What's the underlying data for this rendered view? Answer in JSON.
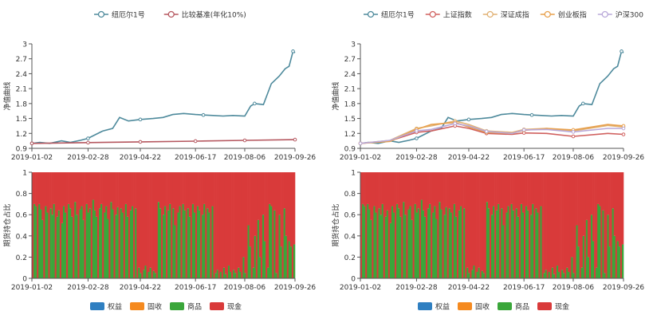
{
  "colors": {
    "fund": "#4e8a9c",
    "benchmark": "#b5575f",
    "sh": "#d0605e",
    "sz": "#e0b072",
    "cy": "#e8a04c",
    "hs300": "#b9a8d9",
    "equity": "#2f7fc1",
    "bond": "#f58a1f",
    "commodity": "#3aa63a",
    "cash": "#d93a3a"
  },
  "chart_data": [
    {
      "type": "line",
      "panel": "top-left",
      "ylabel": "净值曲线",
      "ylim": [
        0.9,
        3
      ],
      "y_ticks": [
        "3",
        "2.7",
        "2.4",
        "2.1",
        "1.8",
        "1.5",
        "1.2",
        "0.9"
      ],
      "x_ticks": [
        "2019-01-02",
        "2019-02-28",
        "2019-04-22",
        "2019-06-17",
        "2019-08-06",
        "2019-09-26"
      ],
      "legend_position": "top",
      "series": [
        {
          "name": "纽厄尔1号",
          "color_key": "fund",
          "x": [
            "2019-01-02",
            "2019-01-10",
            "2019-01-20",
            "2019-02-01",
            "2019-02-10",
            "2019-02-20",
            "2019-02-28",
            "2019-03-08",
            "2019-03-15",
            "2019-03-25",
            "2019-04-01",
            "2019-04-10",
            "2019-04-22",
            "2019-05-05",
            "2019-05-15",
            "2019-05-25",
            "2019-06-05",
            "2019-06-17",
            "2019-06-25",
            "2019-07-05",
            "2019-07-15",
            "2019-07-25",
            "2019-08-06",
            "2019-08-12",
            "2019-08-16",
            "2019-08-25",
            "2019-09-02",
            "2019-09-10",
            "2019-09-16",
            "2019-09-20",
            "2019-09-24",
            "2019-09-26"
          ],
          "y": [
            1.0,
            1.02,
            1.0,
            1.05,
            1.02,
            1.06,
            1.1,
            1.18,
            1.25,
            1.3,
            1.52,
            1.45,
            1.48,
            1.5,
            1.52,
            1.58,
            1.6,
            1.58,
            1.57,
            1.56,
            1.55,
            1.56,
            1.55,
            1.75,
            1.8,
            1.78,
            2.2,
            2.35,
            2.5,
            2.55,
            2.85,
            2.82
          ]
        },
        {
          "name": "比较基准(年化10%)",
          "color_key": "benchmark",
          "x": [
            "2019-01-02",
            "2019-02-28",
            "2019-04-22",
            "2019-06-17",
            "2019-08-06",
            "2019-09-26"
          ],
          "y": [
            1.0,
            1.015,
            1.03,
            1.045,
            1.06,
            1.075
          ]
        }
      ]
    },
    {
      "type": "line",
      "panel": "top-right",
      "ylabel": "净值曲线",
      "ylim": [
        0.9,
        3
      ],
      "y_ticks": [
        "3",
        "2.7",
        "2.4",
        "2.1",
        "1.8",
        "1.5",
        "1.2",
        "0.9"
      ],
      "x_ticks": [
        "2019-01-02",
        "2019-02-28",
        "2019-04-22",
        "2019-06-17",
        "2019-08-06",
        "2019-09-26"
      ],
      "legend_position": "top",
      "series": [
        {
          "name": "纽厄尔1号",
          "color_key": "fund",
          "x": [
            "2019-01-02",
            "2019-01-10",
            "2019-01-20",
            "2019-02-01",
            "2019-02-10",
            "2019-02-20",
            "2019-02-28",
            "2019-03-08",
            "2019-03-15",
            "2019-03-25",
            "2019-04-01",
            "2019-04-10",
            "2019-04-22",
            "2019-05-05",
            "2019-05-15",
            "2019-05-25",
            "2019-06-05",
            "2019-06-17",
            "2019-06-25",
            "2019-07-05",
            "2019-07-15",
            "2019-07-25",
            "2019-08-06",
            "2019-08-12",
            "2019-08-16",
            "2019-08-25",
            "2019-09-02",
            "2019-09-10",
            "2019-09-16",
            "2019-09-20",
            "2019-09-24",
            "2019-09-26"
          ],
          "y": [
            1.0,
            1.02,
            1.0,
            1.05,
            1.02,
            1.06,
            1.1,
            1.18,
            1.25,
            1.3,
            1.52,
            1.45,
            1.48,
            1.5,
            1.52,
            1.58,
            1.6,
            1.58,
            1.57,
            1.56,
            1.55,
            1.56,
            1.55,
            1.75,
            1.8,
            1.78,
            2.2,
            2.35,
            2.5,
            2.55,
            2.85,
            2.82
          ]
        },
        {
          "name": "上证指数",
          "color_key": "sh",
          "x": [
            "2019-01-02",
            "2019-02-01",
            "2019-02-28",
            "2019-03-15",
            "2019-04-08",
            "2019-04-22",
            "2019-05-10",
            "2019-06-05",
            "2019-06-17",
            "2019-07-10",
            "2019-08-06",
            "2019-09-10",
            "2019-09-26"
          ],
          "y": [
            1.0,
            1.05,
            1.22,
            1.25,
            1.35,
            1.3,
            1.2,
            1.18,
            1.21,
            1.2,
            1.14,
            1.2,
            1.18
          ]
        },
        {
          "name": "深证成指",
          "color_key": "sz",
          "x": [
            "2019-01-02",
            "2019-02-01",
            "2019-02-28",
            "2019-03-15",
            "2019-04-08",
            "2019-04-22",
            "2019-05-10",
            "2019-06-05",
            "2019-06-17",
            "2019-07-10",
            "2019-08-06",
            "2019-09-10",
            "2019-09-26"
          ],
          "y": [
            1.0,
            1.06,
            1.3,
            1.35,
            1.45,
            1.38,
            1.25,
            1.22,
            1.28,
            1.3,
            1.25,
            1.36,
            1.33
          ]
        },
        {
          "name": "创业板指",
          "color_key": "cy",
          "x": [
            "2019-01-02",
            "2019-02-01",
            "2019-02-28",
            "2019-03-15",
            "2019-04-08",
            "2019-04-22",
            "2019-05-10",
            "2019-06-05",
            "2019-06-17",
            "2019-07-10",
            "2019-08-06",
            "2019-09-10",
            "2019-09-26"
          ],
          "y": [
            1.0,
            1.04,
            1.28,
            1.38,
            1.42,
            1.33,
            1.22,
            1.2,
            1.26,
            1.3,
            1.27,
            1.38,
            1.35
          ]
        },
        {
          "name": "沪深300",
          "color_key": "hs300",
          "x": [
            "2019-01-02",
            "2019-02-01",
            "2019-02-28",
            "2019-03-15",
            "2019-04-08",
            "2019-04-22",
            "2019-05-10",
            "2019-06-05",
            "2019-06-17",
            "2019-07-10",
            "2019-08-06",
            "2019-09-10",
            "2019-09-26"
          ],
          "y": [
            1.0,
            1.06,
            1.25,
            1.28,
            1.4,
            1.35,
            1.24,
            1.2,
            1.27,
            1.28,
            1.23,
            1.3,
            1.3
          ]
        }
      ]
    },
    {
      "type": "bar",
      "panel": "bottom-left",
      "stacked": true,
      "ylabel": "期货持仓占比",
      "ylim": [
        0,
        1
      ],
      "y_ticks": [
        "1",
        "0.8",
        "0.6",
        "0.4",
        "0.2",
        "0"
      ],
      "x_ticks": [
        "2019-01-02",
        "2019-02-28",
        "2019-04-22",
        "2019-06-17",
        "2019-08-06",
        "2019-09-26"
      ],
      "commodity_levels": [
        0.0,
        0.7,
        0.68,
        0.0,
        0.7,
        0.65,
        0.55,
        0.0,
        0.68,
        0.62,
        0.0,
        0.66,
        0.6,
        0.7,
        0.0,
        0.58,
        0.64,
        0.0,
        0.52,
        0.68,
        0.62,
        0.0,
        0.7,
        0.66,
        0.58,
        0.0,
        0.72,
        0.6,
        0.0,
        0.65,
        0.68,
        0.55,
        0.0,
        0.7,
        0.62,
        0.66,
        0.0,
        0.74,
        0.64,
        0.58,
        0.0,
        0.66,
        0.7,
        0.0,
        0.62,
        0.68,
        0.56,
        0.0,
        0.72,
        0.65,
        0.0,
        0.6,
        0.67,
        0.0,
        0.66,
        0.62,
        0.0,
        0.7,
        0.58,
        0.0,
        0.64,
        0.68,
        0.0,
        0.66,
        0.0,
        0.1,
        0.05,
        0.0,
        0.08,
        0.12,
        0.0,
        0.06,
        0.1,
        0.0,
        0.07,
        0.05,
        0.0,
        0.72,
        0.66,
        0.0,
        0.6,
        0.68,
        0.0,
        0.64,
        0.7,
        0.0,
        0.66,
        0.5,
        0.0,
        0.62,
        0.68,
        0.0,
        0.7,
        0.64,
        0.0,
        0.66,
        0.58,
        0.0,
        0.7,
        0.62,
        0.0,
        0.68,
        0.64,
        0.0,
        0.6,
        0.7,
        0.0,
        0.66,
        0.62,
        0.0,
        0.68,
        0.0,
        0.05,
        0.08,
        0.0,
        0.06,
        0.0,
        0.1,
        0.04,
        0.0,
        0.12,
        0.06,
        0.0,
        0.08,
        0.05,
        0.0,
        0.1,
        0.06,
        0.0,
        0.2,
        0.05,
        0.0,
        0.5,
        0.3,
        0.0,
        0.1,
        0.4,
        0.0,
        0.55,
        0.2,
        0.0,
        0.6,
        0.35,
        0.0,
        0.1,
        0.7,
        0.68,
        0.0,
        0.64,
        0.05,
        0.0,
        0.6,
        0.3,
        0.0,
        0.66,
        0.4,
        0.0,
        0.35,
        0.3,
        0.0,
        0.32
      ]
    },
    {
      "type": "bar",
      "panel": "bottom-right",
      "stacked": true,
      "ylabel": "期货持仓占比",
      "ylim": [
        0,
        1
      ],
      "y_ticks": [
        "1",
        "0.8",
        "0.6",
        "0.4",
        "0.2",
        "0"
      ],
      "x_ticks": [
        "2019-01-02",
        "2019-02-28",
        "2019-04-22",
        "2019-06-17",
        "2019-08-06",
        "2019-09-26"
      ],
      "commodity_levels": [
        0.0,
        0.7,
        0.68,
        0.0,
        0.7,
        0.65,
        0.55,
        0.0,
        0.68,
        0.62,
        0.0,
        0.66,
        0.6,
        0.7,
        0.0,
        0.58,
        0.64,
        0.0,
        0.52,
        0.68,
        0.62,
        0.0,
        0.7,
        0.66,
        0.58,
        0.0,
        0.72,
        0.6,
        0.0,
        0.65,
        0.68,
        0.55,
        0.0,
        0.7,
        0.62,
        0.66,
        0.0,
        0.74,
        0.64,
        0.58,
        0.0,
        0.66,
        0.7,
        0.0,
        0.62,
        0.68,
        0.56,
        0.0,
        0.72,
        0.65,
        0.0,
        0.6,
        0.67,
        0.0,
        0.66,
        0.62,
        0.0,
        0.7,
        0.58,
        0.0,
        0.64,
        0.68,
        0.0,
        0.66,
        0.0,
        0.1,
        0.05,
        0.0,
        0.08,
        0.12,
        0.0,
        0.06,
        0.1,
        0.0,
        0.07,
        0.05,
        0.0,
        0.72,
        0.66,
        0.0,
        0.6,
        0.68,
        0.0,
        0.64,
        0.7,
        0.0,
        0.66,
        0.5,
        0.0,
        0.62,
        0.68,
        0.0,
        0.7,
        0.64,
        0.0,
        0.66,
        0.58,
        0.0,
        0.7,
        0.62,
        0.0,
        0.68,
        0.64,
        0.0,
        0.6,
        0.7,
        0.0,
        0.66,
        0.62,
        0.0,
        0.68,
        0.0,
        0.05,
        0.08,
        0.0,
        0.06,
        0.0,
        0.1,
        0.04,
        0.0,
        0.12,
        0.06,
        0.0,
        0.08,
        0.05,
        0.0,
        0.1,
        0.06,
        0.0,
        0.2,
        0.05,
        0.0,
        0.5,
        0.3,
        0.0,
        0.1,
        0.4,
        0.0,
        0.55,
        0.2,
        0.0,
        0.6,
        0.35,
        0.0,
        0.1,
        0.7,
        0.68,
        0.0,
        0.64,
        0.05,
        0.0,
        0.6,
        0.3,
        0.0,
        0.66,
        0.4,
        0.0,
        0.35,
        0.3,
        0.0,
        0.32
      ]
    }
  ],
  "bar_legend": [
    {
      "name": "权益",
      "color_key": "equity"
    },
    {
      "name": "固收",
      "color_key": "bond"
    },
    {
      "name": "商品",
      "color_key": "commodity"
    },
    {
      "name": "现金",
      "color_key": "cash"
    }
  ],
  "bar_legend_position": "bottom"
}
